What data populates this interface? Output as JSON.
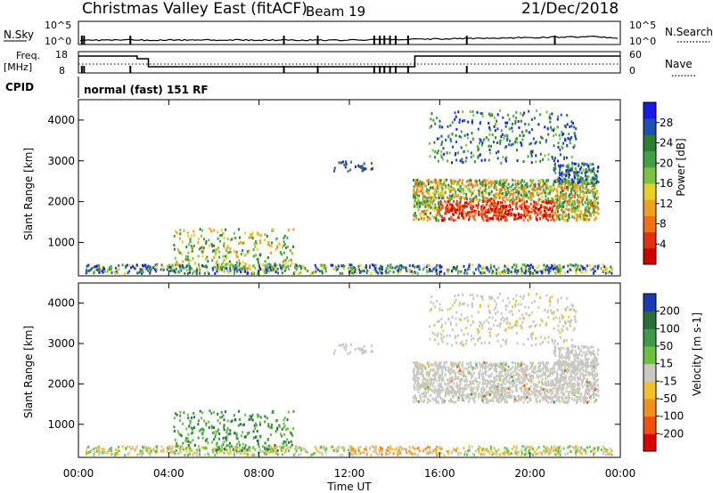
{
  "header": {
    "title": "Christmas Valley East (fitACF)",
    "beam": "Beam 19",
    "date": "21/Dec/2018"
  },
  "summary": {
    "nsky_label": "N.Sky",
    "nsky_ticks": [
      "10^5",
      "10^0"
    ],
    "nsearch_label": "N.Search",
    "nsearch_ticks": [
      "10^5",
      "10^0"
    ],
    "freq_label": "Freq.",
    "freq_unit": "[MHz]",
    "freq_ticks": [
      "18",
      "8"
    ],
    "nave_label": "Nave",
    "nave_ticks": [
      "60",
      "0"
    ],
    "cpid_label": "CPID",
    "cpid_value": "normal (fast) 151 RF"
  },
  "chart_data": [
    {
      "type": "heatmap",
      "name": "power",
      "ylabel": "Slant Range [km]",
      "ylim": [
        180,
        4500
      ],
      "yticks": [
        "4000",
        "3000",
        "2000",
        "1000"
      ],
      "yvals": [
        4000,
        3000,
        2000,
        1000
      ],
      "colorbar": {
        "label": "Power [dB]",
        "ticks": [
          "28",
          "24",
          "20",
          "16",
          "12",
          "8",
          "4"
        ],
        "vals": [
          28,
          24,
          20,
          16,
          12,
          8,
          4
        ],
        "range": [
          0,
          32
        ],
        "colors": [
          "#1a1ae6",
          "#1f4fb0",
          "#2e7d32",
          "#43a047",
          "#7cc242",
          "#e7d125",
          "#f0a020",
          "#f07018",
          "#e03010",
          "#cc0000"
        ]
      }
    },
    {
      "type": "heatmap",
      "name": "velocity",
      "ylabel": "Slant Range [km]",
      "ylim": [
        180,
        4500
      ],
      "yticks": [
        "4000",
        "3000",
        "2000",
        "1000"
      ],
      "yvals": [
        4000,
        3000,
        2000,
        1000
      ],
      "colorbar": {
        "label": "Velocity [m s-1]",
        "ticks": [
          "200",
          "100",
          "50",
          "15",
          "-15",
          "-50",
          "-100",
          "-200"
        ],
        "colors": [
          "#1a3ab0",
          "#2a6e3a",
          "#3e9a4a",
          "#6cc040",
          "#c8c8c0",
          "#f0c030",
          "#f09020",
          "#f05010",
          "#dd0000"
        ]
      }
    }
  ],
  "xaxis": {
    "label": "Time UT",
    "ticks": [
      "00:00",
      "04:00",
      "08:00",
      "12:00",
      "16:00",
      "20:00",
      "00:00"
    ],
    "hours": [
      0,
      4,
      8,
      12,
      16,
      20,
      24
    ]
  }
}
